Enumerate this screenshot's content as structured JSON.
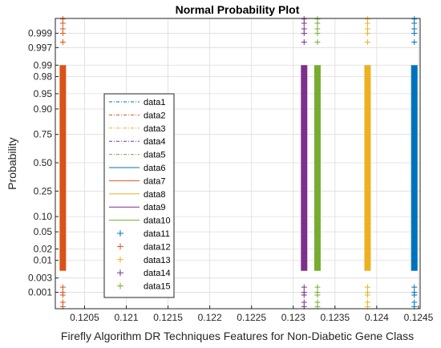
{
  "chart_data": {
    "type": "scatter",
    "title": "Normal Probability Plot",
    "xlabel": "Firefly Algorithm DR Techniques Features for Non-Diabetic Gene Class",
    "ylabel": "Probability",
    "xlim": [
      0.12015,
      0.12452
    ],
    "x_ticks": [
      0.1205,
      0.121,
      0.1215,
      0.122,
      0.1225,
      0.123,
      0.1235,
      0.124,
      0.1245
    ],
    "x_tick_labels": [
      "0.1205",
      "0.121",
      "0.1215",
      "0.122",
      "0.1225",
      "0.123",
      "0.1235",
      "0.124",
      "0.1245"
    ],
    "y_ticks": [
      0.001,
      0.003,
      0.01,
      0.02,
      0.05,
      0.1,
      0.25,
      0.5,
      0.75,
      0.9,
      0.95,
      0.98,
      0.99,
      0.997,
      0.999
    ],
    "y_tick_labels": [
      "0.001",
      "0.003",
      "0.01",
      "0.02",
      "0.05",
      "0.10",
      "0.25",
      "0.50",
      "0.75",
      "0.90",
      "0.95",
      "0.98",
      "0.99",
      "0.997",
      "0.999"
    ],
    "y_scale": "normal-probability",
    "grid": true,
    "legend_position": "left",
    "legend": [
      "data1",
      "data2",
      "data3",
      "data4",
      "data5",
      "data6",
      "data7",
      "data8",
      "data9",
      "data10",
      "data11",
      "data12",
      "data13",
      "data14",
      "data15"
    ],
    "colors": [
      "#0072BD",
      "#D95319",
      "#EDB120",
      "#7E2F8E",
      "#77AC30",
      "#0072BD",
      "#D95319",
      "#EDB120",
      "#7E2F8E",
      "#77AC30",
      "#0072BD",
      "#D95319",
      "#EDB120",
      "#7E2F8E",
      "#77AC30"
    ],
    "series": [
      {
        "name": "data1",
        "marker": "line-dashdot",
        "x": [
          0.12035,
          0.12445
        ],
        "y": [
          0.001,
          0.999
        ]
      },
      {
        "name": "data2",
        "marker": "line-dashdot",
        "x": [
          0.12035,
          0.12445
        ],
        "y": [
          0.001,
          0.999
        ]
      },
      {
        "name": "data3",
        "marker": "line-dashdot",
        "x": [
          0.12035,
          0.12445
        ],
        "y": [
          0.001,
          0.999
        ]
      },
      {
        "name": "data4",
        "marker": "line-dashdot",
        "x": [
          0.12035,
          0.12445
        ],
        "y": [
          0.001,
          0.999
        ]
      },
      {
        "name": "data5",
        "marker": "line-dashdot",
        "x": [
          0.12035,
          0.12445
        ],
        "y": [
          0.001,
          0.999
        ]
      },
      {
        "name": "data6",
        "marker": "line",
        "x": [
          0.12035,
          0.12445
        ],
        "y": [
          0.001,
          0.999
        ]
      },
      {
        "name": "data7",
        "marker": "line",
        "x": [
          0.12035,
          0.12445
        ],
        "y": [
          0.001,
          0.999
        ]
      },
      {
        "name": "data8",
        "marker": "line",
        "x": [
          0.12035,
          0.12445
        ],
        "y": [
          0.001,
          0.999
        ]
      },
      {
        "name": "data9",
        "marker": "line",
        "x": [
          0.12035,
          0.12445
        ],
        "y": [
          0.001,
          0.999
        ]
      },
      {
        "name": "data10",
        "marker": "line",
        "x": [
          0.12035,
          0.12445
        ],
        "y": [
          0.001,
          0.999
        ]
      },
      {
        "name": "data11",
        "marker": "plus",
        "x": [
          0.12445
        ],
        "y_range": [
          0.001,
          0.999
        ]
      },
      {
        "name": "data12",
        "marker": "plus",
        "x": [
          0.12024
        ],
        "y_range": [
          0.001,
          0.999
        ]
      },
      {
        "name": "data13",
        "marker": "plus",
        "x": [
          0.12389
        ],
        "y_range": [
          0.001,
          0.999
        ]
      },
      {
        "name": "data14",
        "marker": "plus",
        "x": [
          0.12313
        ],
        "y_range": [
          0.001,
          0.999
        ]
      },
      {
        "name": "data15",
        "marker": "plus",
        "x": [
          0.12329
        ],
        "y_range": [
          0.001,
          0.999
        ]
      }
    ]
  }
}
